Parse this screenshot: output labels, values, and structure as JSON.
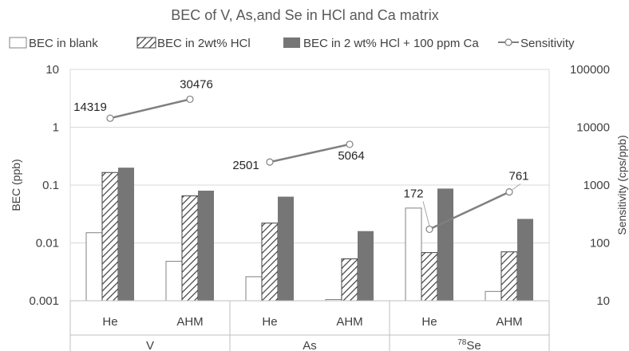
{
  "chart_data": {
    "type": "bar",
    "title": "BEC of V, As,and Se in HCl and Ca matrix",
    "ylabel": "BEC (ppb)",
    "y2label": "Sensitivity (cps/ppb)",
    "y_scale": "log",
    "ylim": [
      0.001,
      10
    ],
    "y2_scale": "log",
    "y2lim": [
      10,
      100000
    ],
    "y_ticks": [
      "0.001",
      "0.01",
      "0.1",
      "1",
      "10"
    ],
    "y2_ticks": [
      "10",
      "100",
      "1000",
      "10000",
      "100000"
    ],
    "groups": [
      {
        "label": "V",
        "sup": "",
        "modes": [
          "He",
          "AHM"
        ]
      },
      {
        "label": "As",
        "sup": "",
        "modes": [
          "He",
          "AHM"
        ]
      },
      {
        "label": "Se",
        "sup": "78",
        "modes": [
          "He",
          "AHM"
        ]
      }
    ],
    "categories": [
      "V He",
      "V AHM",
      "As He",
      "As AHM",
      "Se He",
      "Se AHM"
    ],
    "series": [
      {
        "name": "BEC in blank",
        "kind": "bar",
        "style": "hollow",
        "values": [
          0.015,
          0.0048,
          0.0026,
          0.00105,
          0.04,
          0.00145
        ]
      },
      {
        "name": "BEC in 2wt% HCl",
        "kind": "bar",
        "style": "hatched",
        "values": [
          0.165,
          0.065,
          0.022,
          0.0053,
          0.0068,
          0.007
        ]
      },
      {
        "name": "BEC in 2 wt% HCl + 100 ppm Ca",
        "kind": "bar",
        "style": "solid",
        "values": [
          0.2,
          0.08,
          0.063,
          0.016,
          0.087,
          0.026
        ]
      },
      {
        "name": "Sensitivity",
        "kind": "line",
        "axis": "secondary",
        "values": [
          14319,
          30476,
          2501,
          5064,
          172,
          761
        ],
        "labels": [
          "14319",
          "30476",
          "2501",
          "5064",
          "172",
          "761"
        ]
      }
    ],
    "legend_position": "top",
    "grid": true,
    "colors": {
      "solid": "#767676",
      "hatch": "#404040",
      "outline": "#808080",
      "line": "#7f7f7f",
      "grid": "#d9d9d9"
    }
  }
}
